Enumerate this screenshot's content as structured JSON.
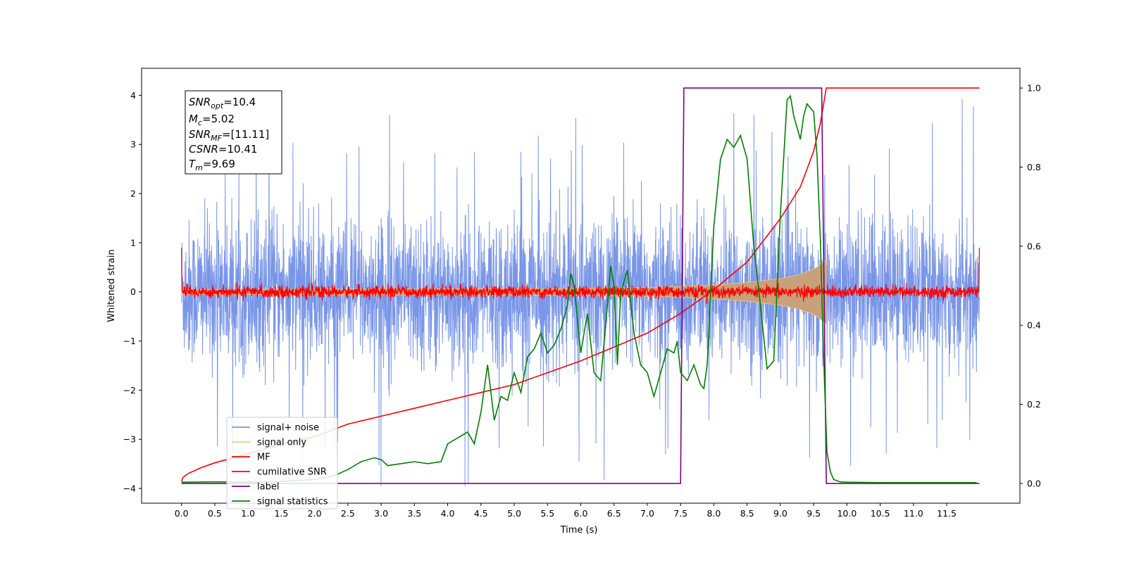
{
  "chart_data": {
    "type": "line",
    "xlabel": "Time (s)",
    "ylabel": "Whitened strain",
    "xlim": [
      -0.6,
      12.6
    ],
    "ylim_left": [
      -4.3,
      4.55
    ],
    "ylim_right": [
      -0.05,
      1.05
    ],
    "x_ticks": [
      "0.0",
      "0.5",
      "1.0",
      "1.5",
      "2.0",
      "2.5",
      "3.0",
      "3.5",
      "4.0",
      "4.5",
      "5.0",
      "5.5",
      "6.0",
      "6.5",
      "7.0",
      "7.5",
      "8.0",
      "8.5",
      "9.0",
      "9.5",
      "10.0",
      "10.5",
      "11.0",
      "11.5"
    ],
    "y_ticks_left": [
      "−4",
      "−3",
      "−2",
      "−1",
      "0",
      "1",
      "2",
      "3",
      "4"
    ],
    "y_ticks_right": [
      "0.0",
      "0.2",
      "0.4",
      "0.6",
      "0.8",
      "1.0"
    ],
    "legend_position": "lower-left",
    "colors": {
      "signal_noise": "#7a96e8",
      "signal_only": "#f5c97a",
      "envelope": "#c8a07a",
      "mf": "#ff0000",
      "cumulative_snr": "#ff0000",
      "label": "#800080",
      "signal_statistics": "#008000"
    },
    "series": [
      {
        "name": "signal+ noise",
        "axis": "left",
        "kind": "noise",
        "x_range": [
          0.0,
          11.99
        ],
        "typical_peak": 2.0,
        "max": 4.17,
        "min": -3.95
      },
      {
        "name": "signal only",
        "axis": "left",
        "kind": "chirp-envelope",
        "x_range": [
          0.0,
          9.69
        ],
        "envelope_x": [
          0,
          6.0,
          7.0,
          7.5,
          8.0,
          8.5,
          9.0,
          9.3,
          9.5,
          9.6,
          9.69
        ],
        "envelope_y": [
          0.05,
          0.07,
          0.09,
          0.11,
          0.14,
          0.19,
          0.27,
          0.36,
          0.46,
          0.55,
          0.65
        ]
      },
      {
        "name": "MF",
        "axis": "left",
        "kind": "noise-small",
        "x_range": [
          0.0,
          11.99
        ],
        "typical_peak": 0.12
      },
      {
        "name": "cumilative SNR",
        "axis": "right",
        "x": [
          0.0,
          0.02,
          0.1,
          0.3,
          0.5,
          1.0,
          1.5,
          2.0,
          2.5,
          3.0,
          3.5,
          4.0,
          4.5,
          5.0,
          5.5,
          6.0,
          6.5,
          7.0,
          7.5,
          8.0,
          8.5,
          9.0,
          9.3,
          9.5,
          9.6,
          9.69,
          11.99
        ],
        "y": [
          0.005,
          0.015,
          0.025,
          0.04,
          0.052,
          0.075,
          0.1,
          0.118,
          0.15,
          0.17,
          0.19,
          0.21,
          0.23,
          0.25,
          0.28,
          0.31,
          0.345,
          0.38,
          0.43,
          0.49,
          0.56,
          0.67,
          0.75,
          0.84,
          0.91,
          1.0,
          1.0
        ]
      },
      {
        "name": "label",
        "axis": "right",
        "x": [
          0.0,
          7.5,
          7.55,
          9.62,
          9.69,
          11.99
        ],
        "y": [
          0.0,
          0.0,
          1.0,
          1.0,
          0.0,
          0.0
        ]
      },
      {
        "name": "signal statistics",
        "axis": "right",
        "x": [
          0.0,
          0.5,
          1.0,
          1.5,
          2.0,
          2.3,
          2.5,
          2.7,
          2.9,
          3.0,
          3.1,
          3.3,
          3.5,
          3.7,
          3.9,
          4.0,
          4.1,
          4.3,
          4.4,
          4.5,
          4.6,
          4.7,
          4.8,
          4.9,
          5.0,
          5.1,
          5.2,
          5.3,
          5.4,
          5.5,
          5.6,
          5.7,
          5.8,
          5.85,
          5.9,
          6.0,
          6.1,
          6.2,
          6.3,
          6.4,
          6.45,
          6.5,
          6.55,
          6.6,
          6.7,
          6.8,
          6.9,
          7.0,
          7.1,
          7.2,
          7.3,
          7.4,
          7.45,
          7.5,
          7.6,
          7.7,
          7.8,
          7.85,
          7.9,
          8.0,
          8.1,
          8.2,
          8.3,
          8.4,
          8.5,
          8.6,
          8.7,
          8.8,
          8.9,
          9.0,
          9.1,
          9.15,
          9.2,
          9.3,
          9.35,
          9.4,
          9.5,
          9.55,
          9.6,
          9.65,
          9.7,
          9.75,
          9.8,
          9.9,
          10.0,
          10.5,
          11.0,
          11.5,
          11.95
        ],
        "y": [
          0.003,
          0.004,
          0.003,
          0.005,
          0.01,
          0.02,
          0.035,
          0.055,
          0.065,
          0.06,
          0.045,
          0.05,
          0.055,
          0.05,
          0.055,
          0.1,
          0.11,
          0.13,
          0.1,
          0.18,
          0.3,
          0.16,
          0.22,
          0.21,
          0.28,
          0.23,
          0.32,
          0.34,
          0.38,
          0.33,
          0.35,
          0.39,
          0.45,
          0.53,
          0.5,
          0.33,
          0.43,
          0.28,
          0.26,
          0.45,
          0.55,
          0.5,
          0.3,
          0.48,
          0.54,
          0.38,
          0.3,
          0.28,
          0.22,
          0.28,
          0.34,
          0.33,
          0.36,
          0.28,
          0.26,
          0.3,
          0.25,
          0.24,
          0.3,
          0.65,
          0.82,
          0.87,
          0.85,
          0.88,
          0.82,
          0.6,
          0.45,
          0.29,
          0.31,
          0.68,
          0.97,
          0.98,
          0.93,
          0.87,
          0.93,
          0.96,
          0.94,
          0.83,
          0.62,
          0.32,
          0.08,
          0.03,
          0.01,
          0.004,
          0.003,
          0.002,
          0.002,
          0.002,
          0.002
        ]
      }
    ],
    "annotations": {
      "snr_opt": {
        "symbol": "SNR",
        "sub": "opt",
        "value": "=10.4"
      },
      "mc": {
        "symbol": "M",
        "sub": "c",
        "value": "=5.02"
      },
      "snr_mf": {
        "symbol": "SNR",
        "sub": "MF",
        "value": "=[11.11]"
      },
      "csnr": {
        "symbol": "CSNR",
        "sub": "",
        "value": "=10.41"
      },
      "tm": {
        "symbol": "T",
        "sub": "m",
        "value": "=9.69"
      }
    }
  }
}
